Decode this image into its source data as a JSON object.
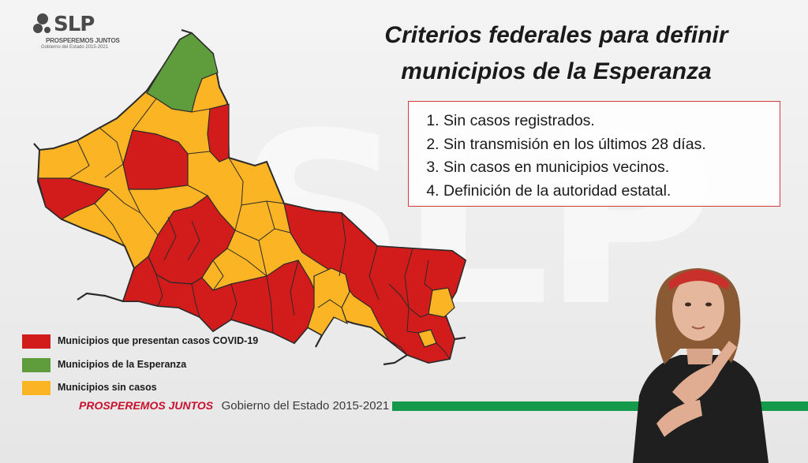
{
  "header": {
    "logo_text": "SLP",
    "logo_subtitle": "PROSPEREMOS JUNTOS",
    "logo_subtitle2": "Gobierno del Estado 2015-2021"
  },
  "title": {
    "line1": "Criterios federales para definir",
    "line2": "municipios de la Esperanza"
  },
  "criteria": [
    "Sin casos registrados.",
    "Sin transmisión en los últimos 28 días.",
    "Sin casos en municipios vecinos.",
    "Definición de la autoridad estatal."
  ],
  "legend": [
    {
      "label": "Municipios que presentan casos COVID-19",
      "color": "#d21b1b"
    },
    {
      "label": "Municipios de la Esperanza",
      "color": "#5e9c3c"
    },
    {
      "label": "Municipios sin casos",
      "color": "#fbb423"
    }
  ],
  "footer": {
    "brand": "PROSPEREMOS JUNTOS",
    "government": "Gobierno del Estado 2015-2021",
    "accent_color": "#149a4a"
  },
  "colors": {
    "covid": "#d21b1b",
    "esperanza": "#5e9c3c",
    "sin_casos": "#fbb423",
    "border": "#d33a3a"
  },
  "watermark_icon": "slp-watermark",
  "interpreter_icon": "sign-language-interpreter"
}
